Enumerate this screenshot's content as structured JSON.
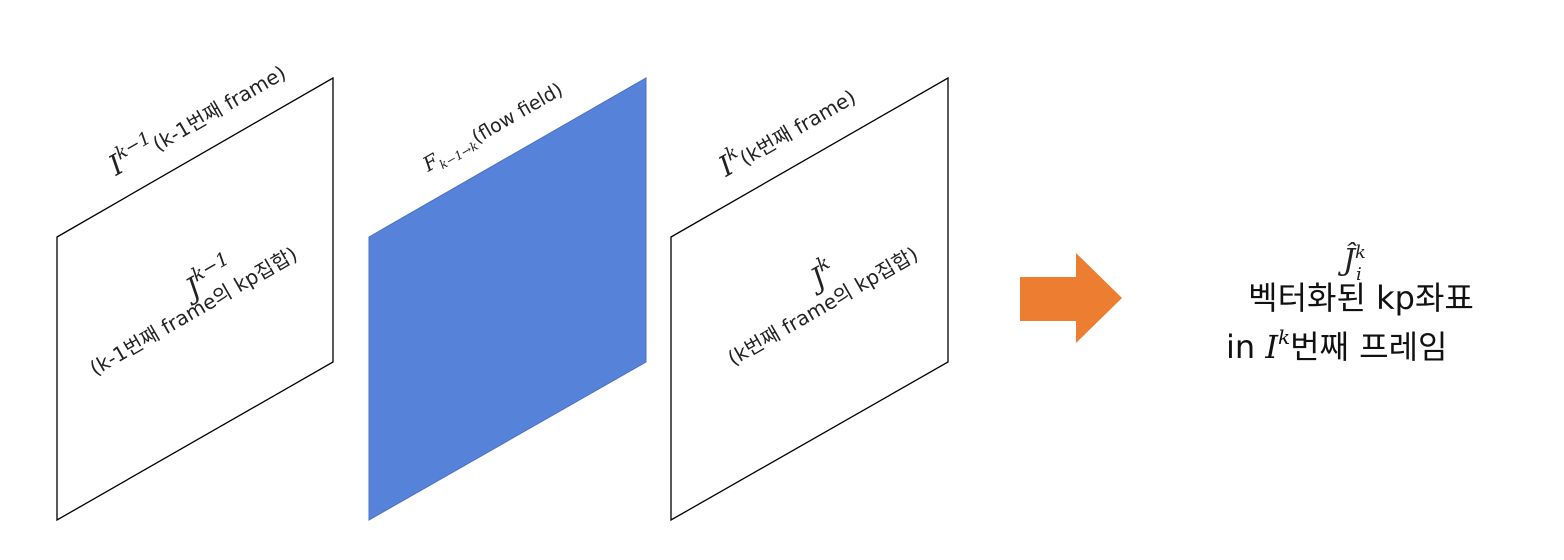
{
  "colors": {
    "flow_panel": "#5683d9",
    "arrow": "#ed7d31",
    "frame_stroke": "#000000",
    "background": "#ffffff"
  },
  "panels": {
    "prev_frame": {
      "title_symbol": "I",
      "title_sup": "k−1",
      "title_text": "(k-1번째 frame)",
      "inner_symbol": "J",
      "inner_sup": "k−1",
      "inner_text": "(k-1번째 frame의 kp집합)"
    },
    "flow": {
      "title_symbol": "F",
      "title_sub": "k−1→k",
      "title_text": "(flow field)"
    },
    "curr_frame": {
      "title_symbol": "I",
      "title_sup": "k",
      "title_text": "(k번째 frame)",
      "inner_symbol": "J",
      "inner_sup": "k",
      "inner_text": "(k번째 frame의 kp집합)"
    }
  },
  "arrow_icon": "right-arrow-icon",
  "result": {
    "symbol": "Ĵ",
    "sup": "k",
    "sub": "i",
    "line1": "벡터화된 kp좌표",
    "line2_prefix": "in ",
    "line2_symbol": "I",
    "line2_sup": "k",
    "line2_suffix": "번째 프레임"
  }
}
